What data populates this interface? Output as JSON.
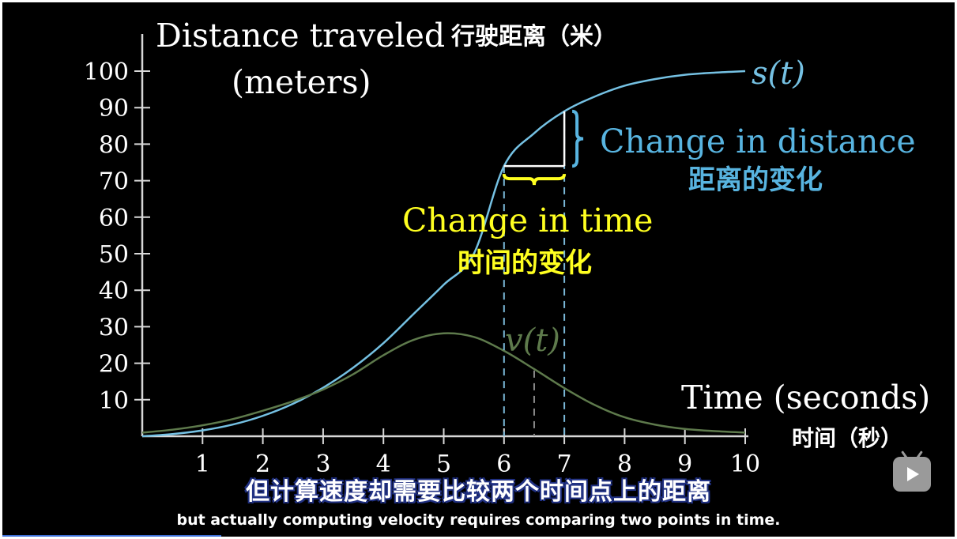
{
  "y_title_en_1": "Distance traveled",
  "y_title_cn": "行驶距离（米）",
  "y_title_en_2": "(meters)",
  "x_title_en": "Time (seconds)",
  "x_title_cn": "时间（秒）",
  "s_label": "s(t)",
  "v_label": "v(t)",
  "change_distance_en": "Change in distance",
  "change_distance_cn": "距离的变化",
  "change_time_en": "Change in time",
  "change_time_cn": "时间的变化",
  "subtitle_cn": "但计算速度却需要比较两个时间点上的距离",
  "subtitle_en": "but actually computing velocity requires comparing two points in time.",
  "progress_fraction": 0.23,
  "colors": {
    "background": "#000000",
    "axis": "#d8d8d8",
    "s_curve": "#75c1e3",
    "v_curve": "#5e7a4c",
    "change_distance": "#58b4e0",
    "change_time": "#ffff20",
    "text": "#ffffff"
  },
  "chart_data": {
    "type": "line",
    "xlim": [
      0,
      10
    ],
    "ylim": [
      0,
      100
    ],
    "x_ticks": [
      1,
      2,
      3,
      4,
      5,
      6,
      7,
      8,
      9,
      10
    ],
    "y_ticks": [
      10,
      20,
      30,
      40,
      50,
      60,
      70,
      80,
      90,
      100
    ],
    "series": [
      {
        "name": "s(t)",
        "x": [
          0,
          0.5,
          1,
          1.5,
          2,
          2.5,
          3,
          3.5,
          4,
          4.5,
          5,
          5.5,
          6,
          6.5,
          7,
          7.5,
          8,
          8.5,
          9,
          9.5,
          10
        ],
        "y": [
          0.0,
          0.6,
          1.6,
          3.2,
          5.6,
          8.9,
          13.3,
          18.8,
          25.5,
          33.5,
          41.5,
          50.0,
          74.0,
          83.0,
          89.0,
          93.0,
          96.0,
          97.8,
          99.0,
          99.6,
          100.0
        ]
      },
      {
        "name": "v(t)",
        "x": [
          0,
          0.5,
          1,
          1.5,
          2,
          2.5,
          3,
          3.5,
          4,
          4.5,
          5,
          5.5,
          6,
          6.5,
          7,
          7.5,
          8,
          8.5,
          9,
          9.5,
          10
        ],
        "y": [
          1.0,
          1.8,
          3.0,
          4.7,
          7.0,
          9.6,
          12.8,
          17.0,
          22.2,
          26.4,
          28.2,
          27.2,
          23.4,
          18.4,
          13.2,
          8.6,
          5.2,
          3.2,
          2.0,
          1.4,
          1.0
        ]
      }
    ],
    "dashed_x": [
      6,
      6.5,
      7
    ],
    "change_interval_x": [
      6,
      7
    ],
    "change_interval_y": [
      74,
      89
    ]
  }
}
